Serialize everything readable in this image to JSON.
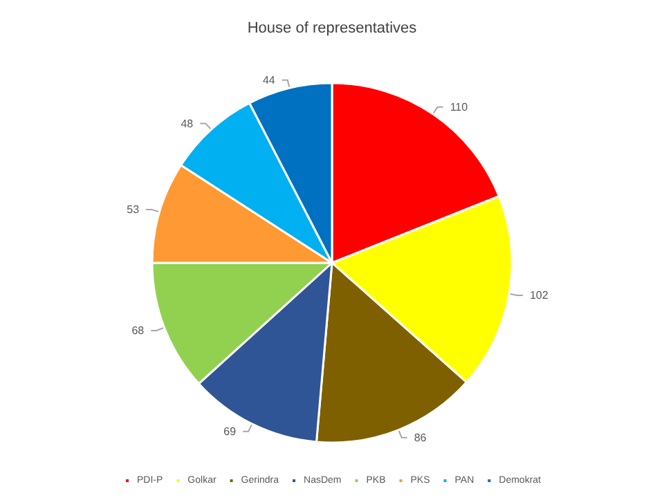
{
  "chart_data": {
    "type": "pie",
    "title": "House of representatives",
    "categories": [
      "PDI-P",
      "Golkar",
      "Gerindra",
      "NasDem",
      "PKB",
      "PKS",
      "PAN",
      "Demokrat"
    ],
    "values": [
      110,
      102,
      86,
      69,
      68,
      53,
      48,
      44
    ],
    "colors": [
      "#ff0000",
      "#ffff00",
      "#7f6000",
      "#2f5597",
      "#92d050",
      "#ff9933",
      "#00b0f0",
      "#0070c0"
    ],
    "data_labels": true,
    "legend": "bottom"
  }
}
